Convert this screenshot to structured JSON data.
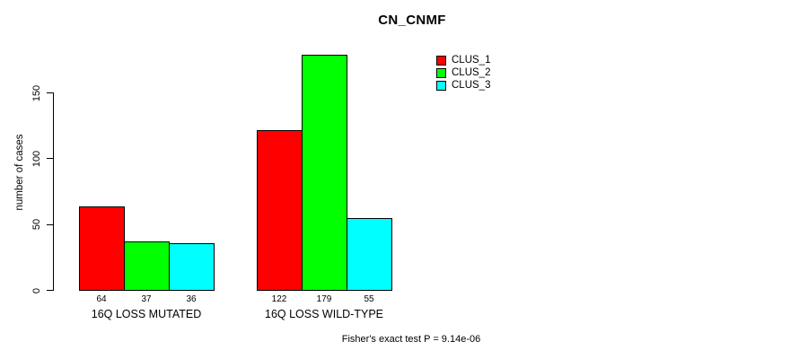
{
  "chart_data": {
    "type": "bar",
    "title": "CN_CNMF",
    "xlabel": "",
    "ylabel": "number of cases",
    "categories": [
      "16Q LOSS MUTATED",
      "16Q LOSS WILD-TYPE"
    ],
    "series": [
      {
        "name": "CLUS_1",
        "color": "#FF0000",
        "values": [
          64,
          122
        ]
      },
      {
        "name": "CLUS_2",
        "color": "#00FF00",
        "values": [
          37,
          179
        ]
      },
      {
        "name": "CLUS_3",
        "color": "#00FFFF",
        "values": [
          36,
          55
        ]
      }
    ],
    "yticks": [
      0,
      50,
      100,
      150
    ],
    "ylim": [
      0,
      180
    ],
    "grid": false,
    "bar_value_labels_shown": true,
    "legend_position": "top-right",
    "legend_entries": [
      "CLUS_1",
      "CLUS_2",
      "CLUS_3"
    ],
    "annotation": "Fisher's exact test P = 9.14e-06"
  }
}
